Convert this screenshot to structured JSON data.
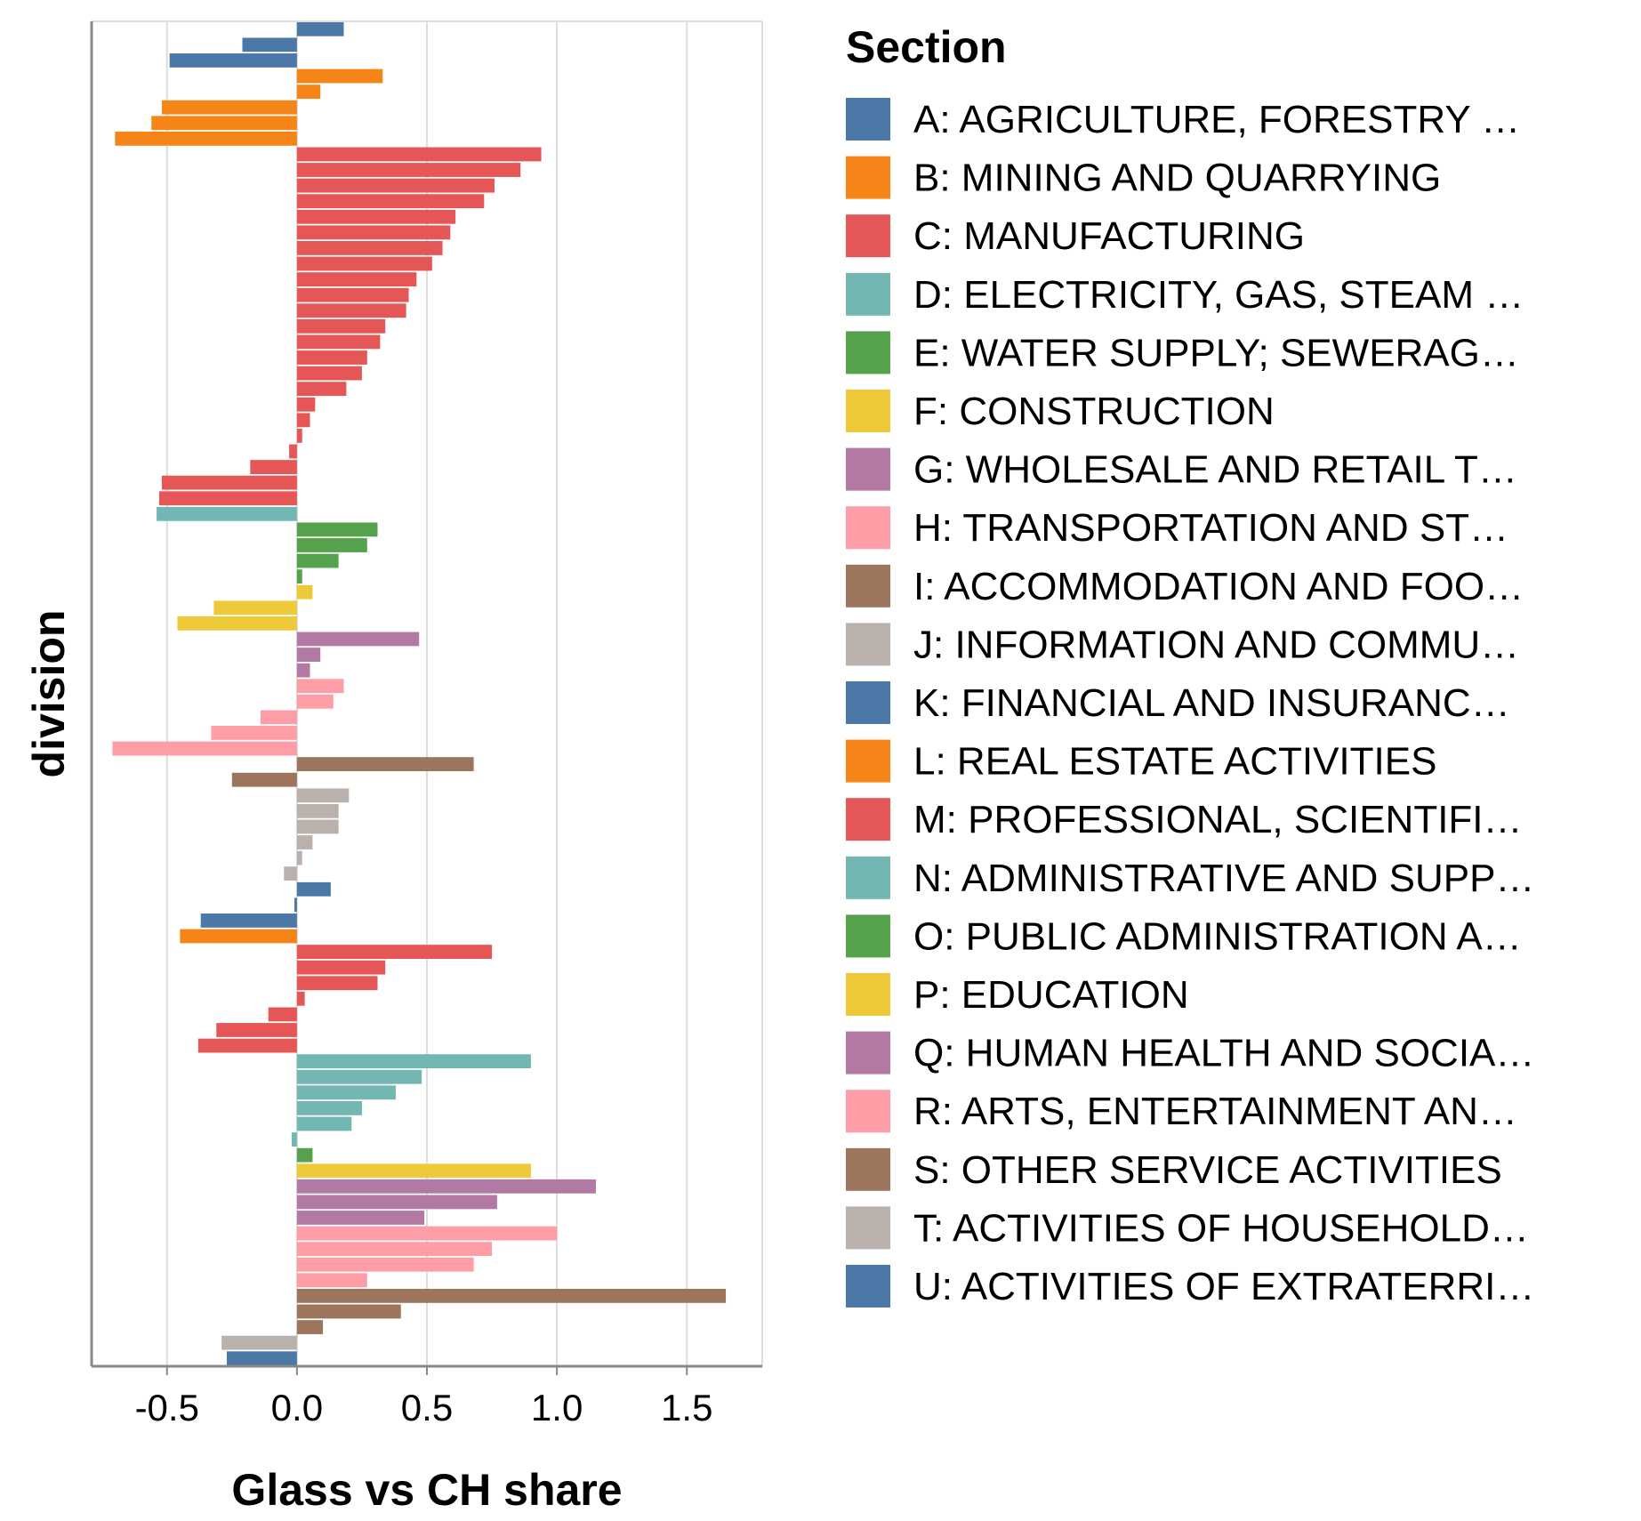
{
  "chart_data": {
    "type": "bar",
    "orientation": "horizontal",
    "xlabel": "Glass vs CH share",
    "ylabel": "division",
    "xlim": [
      -0.79,
      1.79
    ],
    "xticks": [
      -0.5,
      0.0,
      0.5,
      1.0,
      1.5
    ],
    "xtick_labels": [
      "-0.5",
      "0.0",
      "0.5",
      "1.0",
      "1.5"
    ],
    "grid": "vertical",
    "legend": {
      "title": "Section",
      "placement": "right",
      "entries": [
        {
          "key": "A",
          "label": "A: AGRICULTURE, FORESTRY …"
        },
        {
          "key": "B",
          "label": "B: MINING AND QUARRYING"
        },
        {
          "key": "C",
          "label": "C: MANUFACTURING"
        },
        {
          "key": "D",
          "label": "D: ELECTRICITY, GAS, STEAM …"
        },
        {
          "key": "E",
          "label": "E: WATER SUPPLY; SEWERAG…"
        },
        {
          "key": "F",
          "label": "F: CONSTRUCTION"
        },
        {
          "key": "G",
          "label": "G: WHOLESALE AND RETAIL T…"
        },
        {
          "key": "H",
          "label": "H: TRANSPORTATION AND ST…"
        },
        {
          "key": "I",
          "label": "I: ACCOMMODATION AND FOO…"
        },
        {
          "key": "J",
          "label": "J: INFORMATION AND COMMU…"
        },
        {
          "key": "K",
          "label": "K: FINANCIAL AND INSURANC…"
        },
        {
          "key": "L",
          "label": "L: REAL ESTATE ACTIVITIES"
        },
        {
          "key": "M",
          "label": "M: PROFESSIONAL, SCIENTIFI…"
        },
        {
          "key": "N",
          "label": "N: ADMINISTRATIVE AND SUPP…"
        },
        {
          "key": "O",
          "label": "O: PUBLIC ADMINISTRATION A…"
        },
        {
          "key": "P",
          "label": "P: EDUCATION"
        },
        {
          "key": "Q",
          "label": "Q: HUMAN HEALTH AND SOCIA…"
        },
        {
          "key": "R",
          "label": "R: ARTS, ENTERTAINMENT AN…"
        },
        {
          "key": "S",
          "label": "S: OTHER SERVICE ACTIVITIES"
        },
        {
          "key": "T",
          "label": "T: ACTIVITIES OF HOUSEHOLD…"
        },
        {
          "key": "U",
          "label": "U: ACTIVITIES OF EXTRATERRI…"
        }
      ]
    },
    "colors": {
      "A": "#4c78a8",
      "B": "#f58518",
      "C": "#e45756",
      "D": "#72b7b2",
      "E": "#54a24b",
      "F": "#eeca3b",
      "G": "#b279a2",
      "H": "#ff9da6",
      "I": "#9d755d",
      "J": "#bab0ac",
      "K": "#4c78a8",
      "L": "#f58518",
      "M": "#e45756",
      "N": "#72b7b2",
      "O": "#54a24b",
      "P": "#eeca3b",
      "Q": "#b279a2",
      "R": "#ff9da6",
      "S": "#9d755d",
      "T": "#bab0ac",
      "U": "#4c78a8"
    },
    "bars": [
      {
        "section": "A",
        "value": 0.18
      },
      {
        "section": "A",
        "value": -0.21
      },
      {
        "section": "A",
        "value": -0.49
      },
      {
        "section": "B",
        "value": 0.33
      },
      {
        "section": "B",
        "value": 0.09
      },
      {
        "section": "B",
        "value": -0.52
      },
      {
        "section": "B",
        "value": -0.56
      },
      {
        "section": "B",
        "value": -0.7
      },
      {
        "section": "C",
        "value": 0.94
      },
      {
        "section": "C",
        "value": 0.86
      },
      {
        "section": "C",
        "value": 0.76
      },
      {
        "section": "C",
        "value": 0.72
      },
      {
        "section": "C",
        "value": 0.61
      },
      {
        "section": "C",
        "value": 0.59
      },
      {
        "section": "C",
        "value": 0.56
      },
      {
        "section": "C",
        "value": 0.52
      },
      {
        "section": "C",
        "value": 0.46
      },
      {
        "section": "C",
        "value": 0.43
      },
      {
        "section": "C",
        "value": 0.42
      },
      {
        "section": "C",
        "value": 0.34
      },
      {
        "section": "C",
        "value": 0.32
      },
      {
        "section": "C",
        "value": 0.27
      },
      {
        "section": "C",
        "value": 0.25
      },
      {
        "section": "C",
        "value": 0.19
      },
      {
        "section": "C",
        "value": 0.07
      },
      {
        "section": "C",
        "value": 0.05
      },
      {
        "section": "C",
        "value": 0.02
      },
      {
        "section": "C",
        "value": -0.03
      },
      {
        "section": "C",
        "value": -0.18
      },
      {
        "section": "C",
        "value": -0.52
      },
      {
        "section": "C",
        "value": -0.53
      },
      {
        "section": "D",
        "value": -0.54
      },
      {
        "section": "E",
        "value": 0.31
      },
      {
        "section": "E",
        "value": 0.27
      },
      {
        "section": "E",
        "value": 0.16
      },
      {
        "section": "E",
        "value": 0.02
      },
      {
        "section": "F",
        "value": 0.06
      },
      {
        "section": "F",
        "value": -0.32
      },
      {
        "section": "F",
        "value": -0.46
      },
      {
        "section": "G",
        "value": 0.47
      },
      {
        "section": "G",
        "value": 0.09
      },
      {
        "section": "G",
        "value": 0.05
      },
      {
        "section": "H",
        "value": 0.18
      },
      {
        "section": "H",
        "value": 0.14
      },
      {
        "section": "H",
        "value": -0.14
      },
      {
        "section": "H",
        "value": -0.33
      },
      {
        "section": "H",
        "value": -0.71
      },
      {
        "section": "I",
        "value": 0.68
      },
      {
        "section": "I",
        "value": -0.25
      },
      {
        "section": "J",
        "value": 0.2
      },
      {
        "section": "J",
        "value": 0.16
      },
      {
        "section": "J",
        "value": 0.16
      },
      {
        "section": "J",
        "value": 0.06
      },
      {
        "section": "J",
        "value": 0.02
      },
      {
        "section": "J",
        "value": -0.05
      },
      {
        "section": "K",
        "value": 0.13
      },
      {
        "section": "K",
        "value": -0.01
      },
      {
        "section": "K",
        "value": -0.37
      },
      {
        "section": "L",
        "value": -0.45
      },
      {
        "section": "M",
        "value": 0.75
      },
      {
        "section": "M",
        "value": 0.34
      },
      {
        "section": "M",
        "value": 0.31
      },
      {
        "section": "M",
        "value": 0.03
      },
      {
        "section": "M",
        "value": -0.11
      },
      {
        "section": "M",
        "value": -0.31
      },
      {
        "section": "M",
        "value": -0.38
      },
      {
        "section": "N",
        "value": 0.9
      },
      {
        "section": "N",
        "value": 0.48
      },
      {
        "section": "N",
        "value": 0.38
      },
      {
        "section": "N",
        "value": 0.25
      },
      {
        "section": "N",
        "value": 0.21
      },
      {
        "section": "N",
        "value": -0.02
      },
      {
        "section": "O",
        "value": 0.06
      },
      {
        "section": "P",
        "value": 0.9
      },
      {
        "section": "Q",
        "value": 1.15
      },
      {
        "section": "Q",
        "value": 0.77
      },
      {
        "section": "Q",
        "value": 0.49
      },
      {
        "section": "R",
        "value": 1.0
      },
      {
        "section": "R",
        "value": 0.75
      },
      {
        "section": "R",
        "value": 0.68
      },
      {
        "section": "R",
        "value": 0.27
      },
      {
        "section": "S",
        "value": 1.65
      },
      {
        "section": "S",
        "value": 0.4
      },
      {
        "section": "S",
        "value": 0.1
      },
      {
        "section": "T",
        "value": -0.29
      },
      {
        "section": "U",
        "value": -0.27
      }
    ]
  }
}
